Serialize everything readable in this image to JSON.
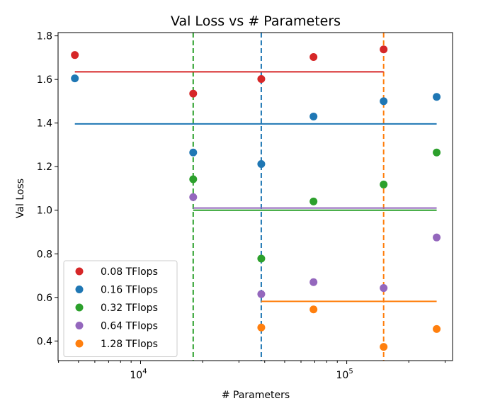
{
  "chart_data": {
    "type": "scatter",
    "title": "Val Loss vs # Parameters",
    "xlabel": "# Parameters",
    "ylabel": "Val Loss",
    "xscale": "log",
    "xlim": [
      3980,
      326000
    ],
    "ylim": [
      0.31,
      1.815
    ],
    "grid": false,
    "legend_position": "lower-left",
    "y_ticks": [
      "0.4",
      "0.6",
      "0.8",
      "1.0",
      "1.2",
      "1.4",
      "1.6",
      "1.8"
    ],
    "x_ticks": [
      {
        "base": "10",
        "exp": "4",
        "value": 10000
      },
      {
        "base": "10",
        "exp": "5",
        "value": 100000
      }
    ],
    "series": [
      {
        "name": "0.08 TFlops",
        "color": "#d62728",
        "x": [
          4800,
          18000,
          38500,
          69000,
          151000
        ],
        "y": [
          1.712,
          1.535,
          1.602,
          1.703,
          1.738
        ],
        "hline": {
          "y": 1.635,
          "x_start": 4800,
          "x_end": 151000
        },
        "vline": null
      },
      {
        "name": "0.16 TFlops",
        "color": "#1f77b4",
        "x": [
          4800,
          18000,
          38500,
          69000,
          151000,
          273000
        ],
        "y": [
          1.605,
          1.265,
          1.212,
          1.43,
          1.5,
          1.52
        ],
        "hline": {
          "y": 1.396,
          "x_start": 4800,
          "x_end": 273000
        },
        "vline": 38500
      },
      {
        "name": "0.32 TFlops",
        "color": "#2ca02c",
        "x": [
          18000,
          38500,
          69000,
          151000,
          273000
        ],
        "y": [
          1.142,
          0.778,
          1.04,
          1.118,
          1.265
        ],
        "hline": {
          "y": 1.0,
          "x_start": 18000,
          "x_end": 273000
        },
        "vline": 18000
      },
      {
        "name": "0.64 TFlops",
        "color": "#9467bd",
        "x": [
          18000,
          38500,
          69000,
          151000,
          273000
        ],
        "y": [
          1.06,
          0.615,
          0.67,
          0.643,
          0.875
        ],
        "hline": {
          "y": 1.01,
          "x_start": 18000,
          "x_end": 273000
        },
        "vline": null
      },
      {
        "name": "1.28 TFlops",
        "color": "#ff7f0e",
        "x": [
          38500,
          69000,
          151000,
          273000
        ],
        "y": [
          0.462,
          0.545,
          0.373,
          0.455
        ],
        "hline": {
          "y": 0.582,
          "x_start": 38500,
          "x_end": 273000
        },
        "vline": 151000
      }
    ]
  }
}
